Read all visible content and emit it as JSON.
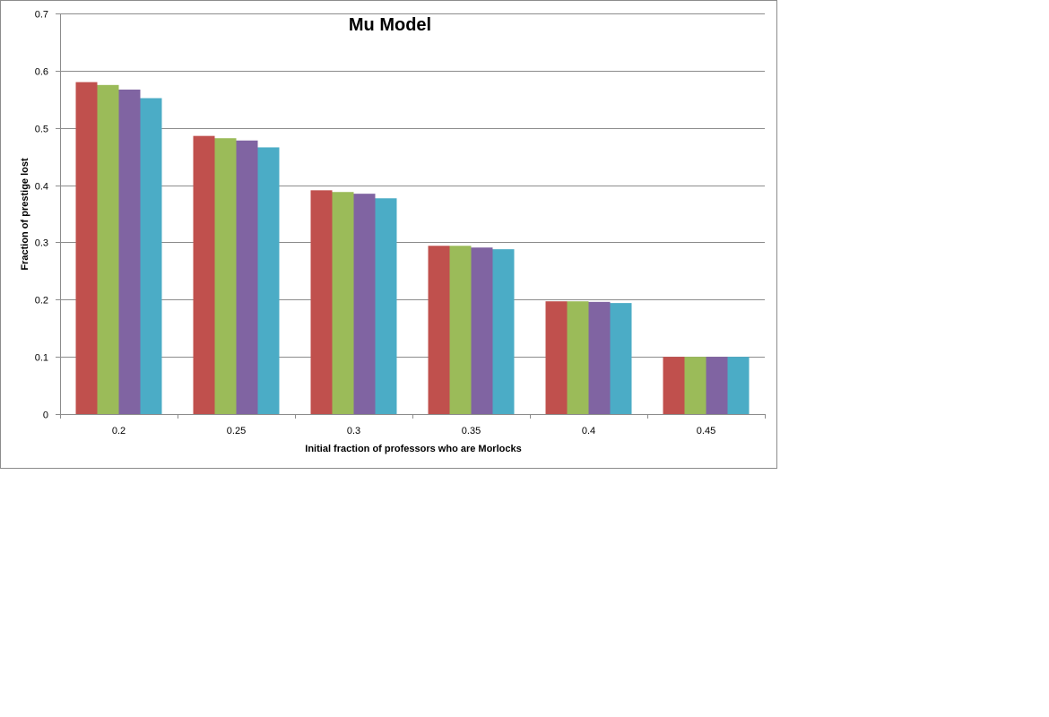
{
  "chart_data": {
    "type": "bar",
    "title": "Mu Model",
    "xlabel": "Initial  fraction of professors who are Morlocks",
    "ylabel": "Fraction of prestige lost",
    "categories": [
      "0.2",
      "0.25",
      "0.3",
      "0.35",
      "0.4",
      "0.45"
    ],
    "ylim": [
      0,
      0.7
    ],
    "yticks": [
      "0",
      "0.1",
      "0.2",
      "0.3",
      "0.4",
      "0.5",
      "0.6",
      "0.7"
    ],
    "grid": true,
    "legend": "none",
    "series": [
      {
        "color": "#C0504D",
        "values": [
          0.58,
          0.486,
          0.391,
          0.294,
          0.197,
          0.1
        ]
      },
      {
        "color": "#9BBB59",
        "values": [
          0.575,
          0.482,
          0.388,
          0.294,
          0.197,
          0.1
        ]
      },
      {
        "color": "#8064A2",
        "values": [
          0.567,
          0.478,
          0.385,
          0.291,
          0.196,
          0.1
        ]
      },
      {
        "color": "#4BACC6",
        "values": [
          0.552,
          0.466,
          0.377,
          0.288,
          0.194,
          0.1
        ]
      }
    ]
  }
}
